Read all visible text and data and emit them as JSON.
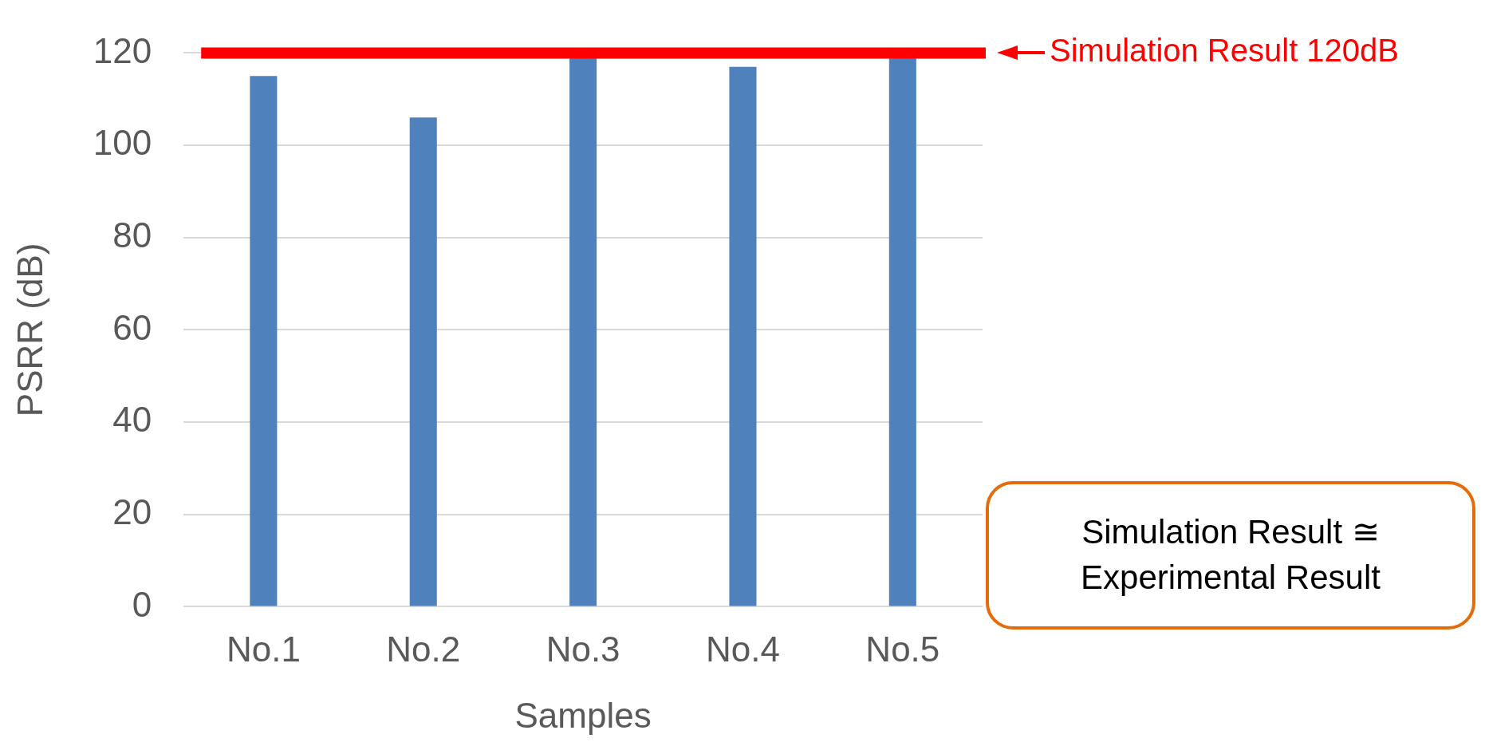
{
  "chart_data": {
    "type": "bar",
    "categories": [
      "No.1",
      "No.2",
      "No.3",
      "No.4",
      "No.5"
    ],
    "values": [
      115,
      106,
      119,
      117,
      119
    ],
    "color": "#4f81bd",
    "xlabel": "Samples",
    "ylabel": "PSRR (dB)",
    "ylim": [
      0,
      120
    ],
    "yticks": [
      0,
      20,
      40,
      60,
      80,
      100,
      120
    ],
    "grid": "y",
    "legend": false,
    "ref_lines": [
      {
        "axis": "y",
        "value": 120,
        "label": "Simulation Result 120dB",
        "color": "#ff0000"
      }
    ],
    "annotations": [
      "Simulation Result ≅ Experimental Result"
    ]
  }
}
